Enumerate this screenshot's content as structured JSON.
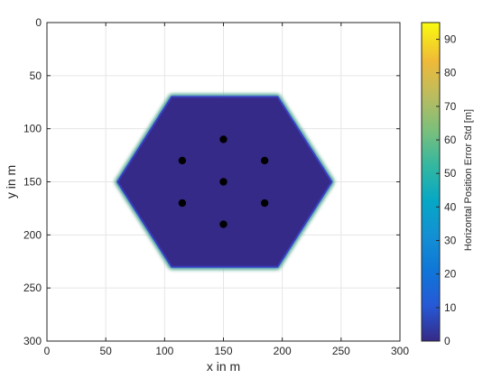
{
  "chart_data": {
    "type": "heatmap",
    "xlabel": "x in m",
    "ylabel": "y in m",
    "colorbar_label": "Horizontal Position Error Std [m]",
    "xlim": [
      0,
      300
    ],
    "ylim": [
      300,
      0
    ],
    "y_direction": "reversed",
    "xticks": [
      0,
      50,
      100,
      150,
      200,
      250,
      300
    ],
    "yticks": [
      0,
      50,
      100,
      150,
      200,
      250,
      300
    ],
    "xtick_labels": [
      "0",
      "50",
      "100",
      "150",
      "200",
      "250",
      "300"
    ],
    "ytick_labels": [
      "0",
      "50",
      "100",
      "150",
      "200",
      "250",
      "300"
    ],
    "colorbar_range": [
      0,
      95
    ],
    "colorbar_ticks": [
      0,
      10,
      20,
      30,
      40,
      50,
      60,
      70,
      80,
      90
    ],
    "colorbar_tick_labels": [
      "0",
      "10",
      "20",
      "30",
      "40",
      "50",
      "60",
      "70",
      "80",
      "90"
    ],
    "colormap": "parula",
    "grid": true,
    "coverage_region": {
      "shape": "hexagon",
      "vertices": [
        [
          106,
          70
        ],
        [
          196,
          70
        ],
        [
          242,
          150
        ],
        [
          196,
          230
        ],
        [
          106,
          230
        ],
        [
          60,
          150
        ]
      ],
      "interior_value": 2,
      "edge_value": 60
    },
    "anchors": [
      {
        "x": 150,
        "y": 110
      },
      {
        "x": 115,
        "y": 130
      },
      {
        "x": 185,
        "y": 130
      },
      {
        "x": 150,
        "y": 150
      },
      {
        "x": 115,
        "y": 170
      },
      {
        "x": 185,
        "y": 170
      },
      {
        "x": 150,
        "y": 190
      }
    ],
    "colors": {
      "background": "#ffffff",
      "axes_face": "#ffffff",
      "grid": "#e6e6e6",
      "axis_line": "#262626",
      "anchor": "#000000"
    }
  }
}
